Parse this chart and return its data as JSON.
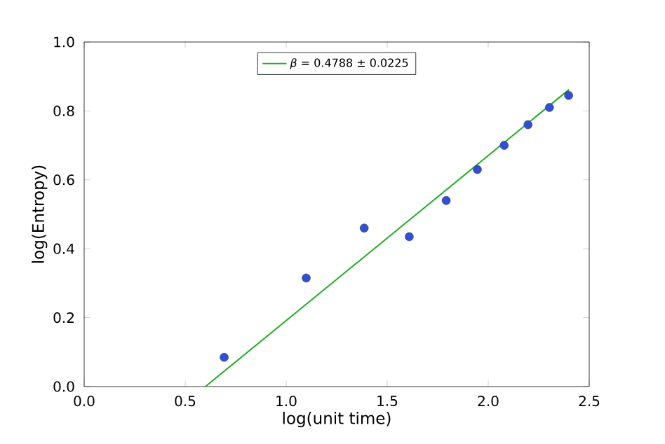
{
  "chart_data": {
    "type": "scatter",
    "xlabel": "log(unit time)",
    "ylabel": "log(Entropy)",
    "xlim": [
      0,
      2.5
    ],
    "ylim": [
      0,
      1
    ],
    "xticks": [
      {
        "value": 0,
        "label": "0.0"
      },
      0.5,
      {
        "value": 1,
        "label": "1.0"
      },
      1.5,
      {
        "value": 2,
        "label": "2.0"
      },
      2.5
    ],
    "yticks": [
      {
        "value": 0,
        "label": "0.0"
      },
      0.2,
      0.4,
      0.6,
      0.8,
      {
        "value": 1,
        "label": "1.0"
      }
    ],
    "legend": "top",
    "grid": false,
    "series": [
      {
        "color": "#2e4fd6",
        "marker": "circle",
        "x": [
          0.693,
          1.099,
          1.386,
          1.609,
          1.792,
          1.946,
          2.079,
          2.197,
          2.303,
          2.398
        ],
        "values": [
          0.085,
          0.315,
          0.46,
          0.435,
          0.54,
          0.63,
          0.7,
          0.76,
          0.81,
          0.845
        ]
      },
      {
        "type": "line",
        "name": "*β* = 0.4788 ± 0.0225",
        "color": "#22aa22",
        "marker": "none",
        "line_style": "solid",
        "x": [
          0.6,
          2.4
        ],
        "values": [
          0.0,
          0.862
        ]
      }
    ]
  }
}
